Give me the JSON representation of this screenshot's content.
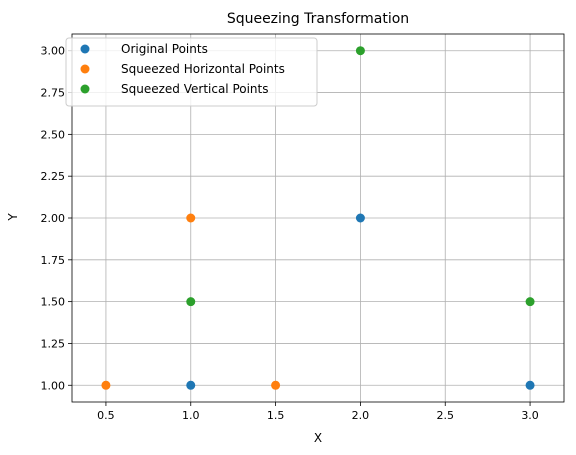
{
  "chart_data": {
    "type": "scatter",
    "title": "Squeezing Transformation",
    "xlabel": "X",
    "ylabel": "Y",
    "xlim": [
      0.3,
      3.2
    ],
    "ylim": [
      0.9,
      3.1
    ],
    "xticks": [
      "0.5",
      "1.0",
      "1.5",
      "2.0",
      "2.5",
      "3.0"
    ],
    "yticks": [
      "1.00",
      "1.25",
      "1.50",
      "1.75",
      "2.00",
      "2.25",
      "2.50",
      "2.75",
      "3.00"
    ],
    "grid": true,
    "legend_position": "top-left",
    "series": [
      {
        "name": "Original Points",
        "color": "#1f77b4",
        "points": [
          [
            1,
            1
          ],
          [
            2,
            2
          ],
          [
            3,
            1
          ]
        ]
      },
      {
        "name": "Squeezed Horizontal Points",
        "color": "#ff7f0e",
        "points": [
          [
            0.5,
            1
          ],
          [
            1,
            2
          ],
          [
            1.5,
            1
          ]
        ]
      },
      {
        "name": "Squeezed Vertical Points",
        "color": "#2ca02c",
        "points": [
          [
            1,
            1.5
          ],
          [
            2,
            3
          ],
          [
            3,
            1.5
          ]
        ]
      }
    ]
  }
}
